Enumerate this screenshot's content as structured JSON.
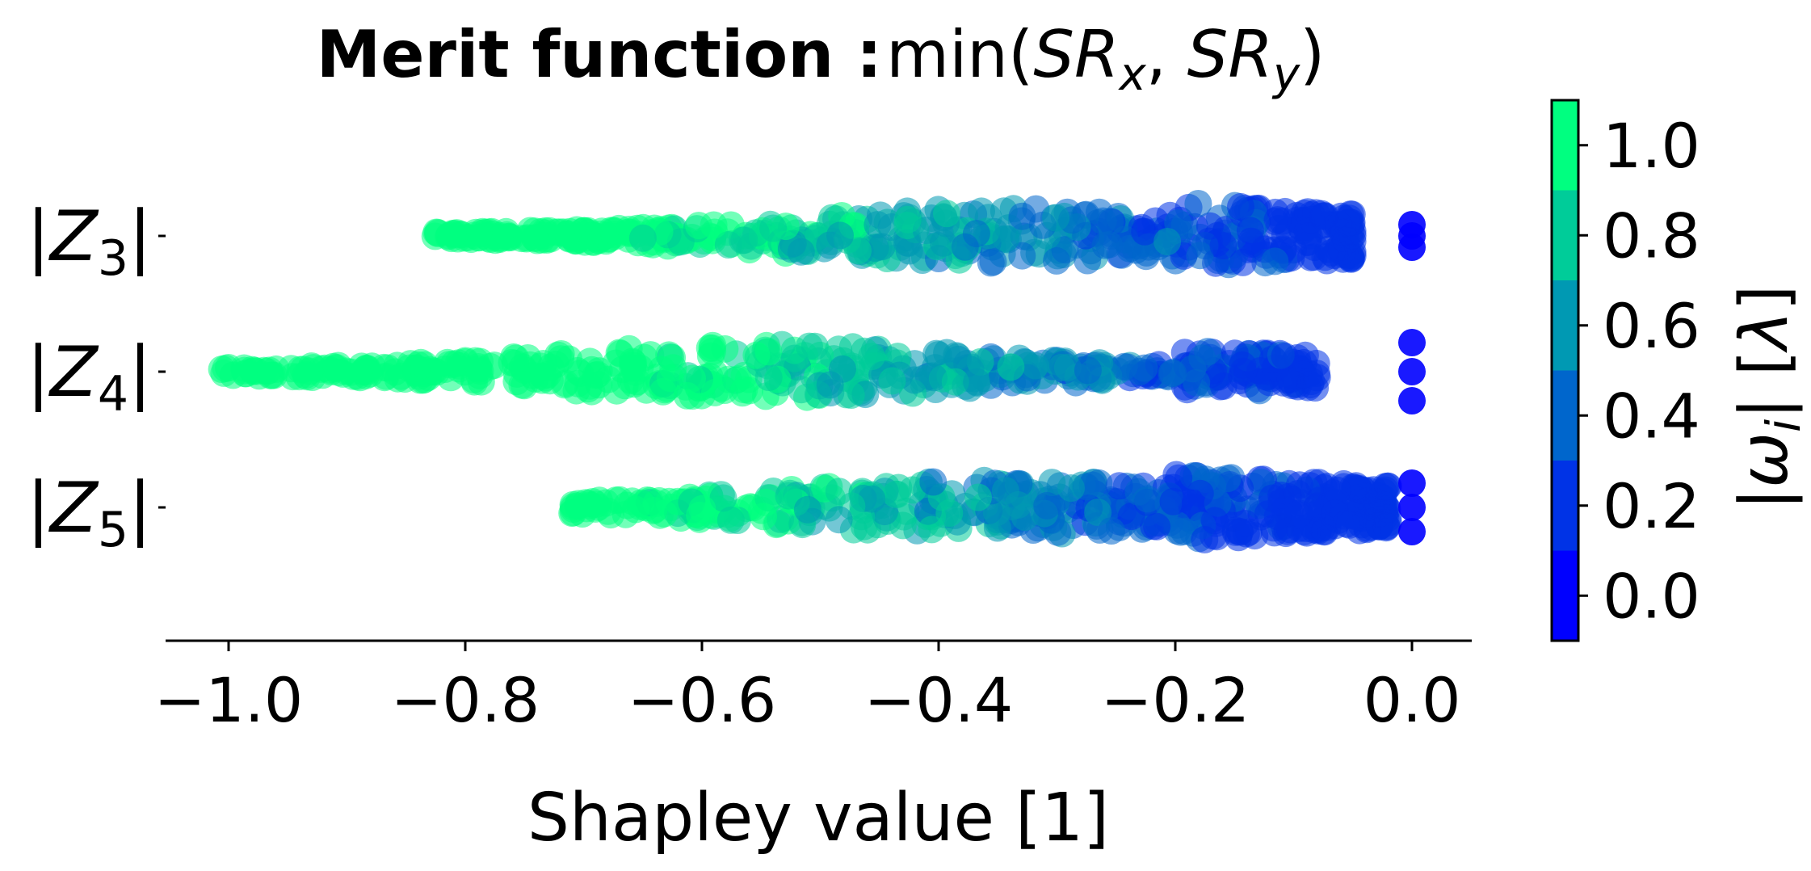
{
  "chart_data": {
    "type": "scatter",
    "title": {
      "bold": "Merit function :",
      "expr": "min(SR_x, SR_y)"
    },
    "xlabel": "Shapley value [1]",
    "xlim": [
      -1.04,
      0.06
    ],
    "xticks": [
      -1.0,
      -0.8,
      -0.6,
      -0.4,
      -0.2,
      0.0
    ],
    "xtick_labels": [
      "−1.0",
      "−0.8",
      "−0.6",
      "−0.4",
      "−0.2",
      "0.0"
    ],
    "features": [
      {
        "label": "|Z3|",
        "sub": "3",
        "x_min": -0.83,
        "x_max": 0.0
      },
      {
        "label": "|Z4|",
        "sub": "4",
        "x_min": -1.01,
        "x_max": 0.0
      },
      {
        "label": "|Z5|",
        "sub": "5",
        "x_min": -0.71,
        "x_max": 0.0
      }
    ],
    "colorbar": {
      "label": "|ω_i| [λ]",
      "range": [
        -0.1,
        1.1
      ],
      "ticks": [
        0.0,
        0.2,
        0.4,
        0.6,
        0.8,
        1.0
      ],
      "tick_labels": [
        "0.0",
        "0.2",
        "0.4",
        "0.6",
        "0.8",
        "1.0"
      ],
      "levels": [
        {
          "from": -0.1,
          "to": 0.1,
          "color": "#0000ff"
        },
        {
          "from": 0.1,
          "to": 0.3,
          "color": "#0033e6"
        },
        {
          "from": 0.3,
          "to": 0.5,
          "color": "#0066cc"
        },
        {
          "from": 0.5,
          "to": 0.7,
          "color": "#0099b3"
        },
        {
          "from": 0.7,
          "to": 0.9,
          "color": "#00cc99"
        },
        {
          "from": 0.9,
          "to": 1.1,
          "color": "#00ff80"
        }
      ]
    },
    "grid": false
  }
}
